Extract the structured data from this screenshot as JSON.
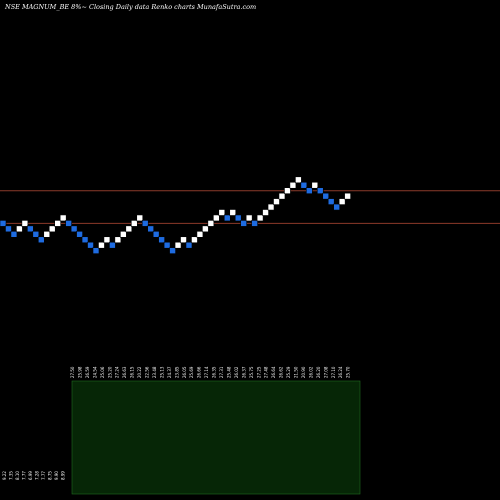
{
  "chart_data": {
    "type": "renko",
    "title": "NSE MAGNUM_BE 8%~  Closing Daily data  Renko  charts MunafaSutra.com",
    "colors": {
      "background": "#000000",
      "up_brick": "#ffffff",
      "down_brick": "#1e6be0",
      "brick_outline": "#000000",
      "level_line": "#8b3a2a",
      "volume_fill": "#062606",
      "volume_border": "#1f6b1f"
    },
    "bricks": [
      {
        "level": 16,
        "dir": "down"
      },
      {
        "level": 15,
        "dir": "down"
      },
      {
        "level": 14,
        "dir": "down"
      },
      {
        "level": 15,
        "dir": "up"
      },
      {
        "level": 16,
        "dir": "up"
      },
      {
        "level": 15,
        "dir": "down"
      },
      {
        "level": 14,
        "dir": "down"
      },
      {
        "level": 13,
        "dir": "down"
      },
      {
        "level": 14,
        "dir": "up"
      },
      {
        "level": 15,
        "dir": "up"
      },
      {
        "level": 16,
        "dir": "up"
      },
      {
        "level": 17,
        "dir": "up"
      },
      {
        "level": 16,
        "dir": "down"
      },
      {
        "level": 15,
        "dir": "down"
      },
      {
        "level": 14,
        "dir": "down"
      },
      {
        "level": 13,
        "dir": "down"
      },
      {
        "level": 12,
        "dir": "down"
      },
      {
        "level": 11,
        "dir": "down"
      },
      {
        "level": 12,
        "dir": "up"
      },
      {
        "level": 13,
        "dir": "up"
      },
      {
        "level": 12,
        "dir": "down"
      },
      {
        "level": 13,
        "dir": "up"
      },
      {
        "level": 14,
        "dir": "up"
      },
      {
        "level": 15,
        "dir": "up"
      },
      {
        "level": 16,
        "dir": "up"
      },
      {
        "level": 17,
        "dir": "up"
      },
      {
        "level": 16,
        "dir": "down"
      },
      {
        "level": 15,
        "dir": "down"
      },
      {
        "level": 14,
        "dir": "down"
      },
      {
        "level": 13,
        "dir": "down"
      },
      {
        "level": 12,
        "dir": "down"
      },
      {
        "level": 11,
        "dir": "down"
      },
      {
        "level": 12,
        "dir": "up"
      },
      {
        "level": 13,
        "dir": "up"
      },
      {
        "level": 12,
        "dir": "down"
      },
      {
        "level": 13,
        "dir": "up"
      },
      {
        "level": 14,
        "dir": "up"
      },
      {
        "level": 15,
        "dir": "up"
      },
      {
        "level": 16,
        "dir": "up"
      },
      {
        "level": 17,
        "dir": "up"
      },
      {
        "level": 18,
        "dir": "up"
      },
      {
        "level": 17,
        "dir": "down"
      },
      {
        "level": 18,
        "dir": "up"
      },
      {
        "level": 17,
        "dir": "down"
      },
      {
        "level": 16,
        "dir": "down"
      },
      {
        "level": 17,
        "dir": "up"
      },
      {
        "level": 16,
        "dir": "down"
      },
      {
        "level": 17,
        "dir": "up"
      },
      {
        "level": 18,
        "dir": "up"
      },
      {
        "level": 19,
        "dir": "up"
      },
      {
        "level": 20,
        "dir": "up"
      },
      {
        "level": 21,
        "dir": "up"
      },
      {
        "level": 22,
        "dir": "up"
      },
      {
        "level": 23,
        "dir": "up"
      },
      {
        "level": 24,
        "dir": "up"
      },
      {
        "level": 23,
        "dir": "down"
      },
      {
        "level": 22,
        "dir": "down"
      },
      {
        "level": 23,
        "dir": "up"
      },
      {
        "level": 22,
        "dir": "down"
      },
      {
        "level": 21,
        "dir": "down"
      },
      {
        "level": 20,
        "dir": "down"
      },
      {
        "level": 19,
        "dir": "down"
      },
      {
        "level": 20,
        "dir": "up"
      },
      {
        "level": 21,
        "dir": "up"
      }
    ],
    "level_lines": [
      22,
      16
    ],
    "volume_panel": {
      "label_rows": [
        "",
        "9.22 7.35 8.10 7.77 6.99 7.28 7.77 8.75 9.90 8.99",
        "27.50 25.98 26.59 24.54 25.06 25.20 27.24 26.63 26.15 20.22 22.56 23.48 25.13 24.37 23.85 26.05 25.69 26.66 27.14 26.35 27.31 25.48 26.02 26.37 25.75 27.25 27.48 26.64 26.62 25.29 21.50 20.90 26.02 26.20 27.08 27.10 26.24 25.70"
      ]
    }
  }
}
